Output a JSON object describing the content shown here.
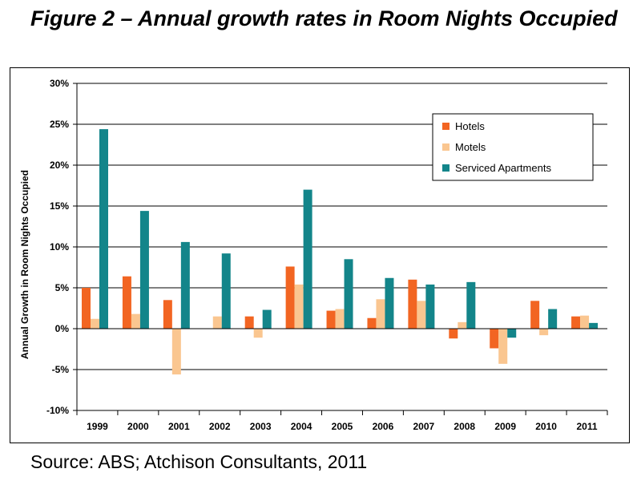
{
  "figure": {
    "title": "Figure 2 – Annual growth rates in Room Nights Occupied",
    "source": "Source: ABS; Atchison Consultants, 2011"
  },
  "colors": {
    "hotels": "#F26522",
    "motels": "#FAC690",
    "serviced": "#13858A",
    "gridline": "#000000"
  },
  "chart_data": {
    "type": "bar",
    "title": "",
    "xlabel": "",
    "ylabel": "Annual Growth in Room Nights Occupied",
    "categories": [
      "1999",
      "2000",
      "2001",
      "2002",
      "2003",
      "2004",
      "2005",
      "2006",
      "2007",
      "2008",
      "2009",
      "2010",
      "2011"
    ],
    "series": [
      {
        "name": "Hotels",
        "values": [
          5.0,
          6.4,
          3.5,
          0.0,
          1.5,
          7.6,
          2.2,
          1.3,
          6.0,
          -1.2,
          -2.4,
          3.4,
          1.5
        ]
      },
      {
        "name": "Motels",
        "values": [
          1.2,
          1.8,
          -5.6,
          1.5,
          -1.1,
          5.4,
          2.4,
          3.6,
          3.4,
          0.8,
          -4.3,
          -0.8,
          1.6
        ]
      },
      {
        "name": "Serviced Apartments",
        "values": [
          24.4,
          14.4,
          10.6,
          9.2,
          2.3,
          17.0,
          8.5,
          6.2,
          5.4,
          5.7,
          -1.1,
          2.4,
          0.7
        ]
      }
    ],
    "ylim": [
      -10,
      30
    ],
    "yticks": [
      -10,
      -5,
      0,
      5,
      10,
      15,
      20,
      25,
      30
    ],
    "ytick_labels": [
      "-10%",
      "-5%",
      "0%",
      "5%",
      "10%",
      "15%",
      "20%",
      "25%",
      "30%"
    ],
    "grid": true,
    "legend_position": "top-right"
  }
}
